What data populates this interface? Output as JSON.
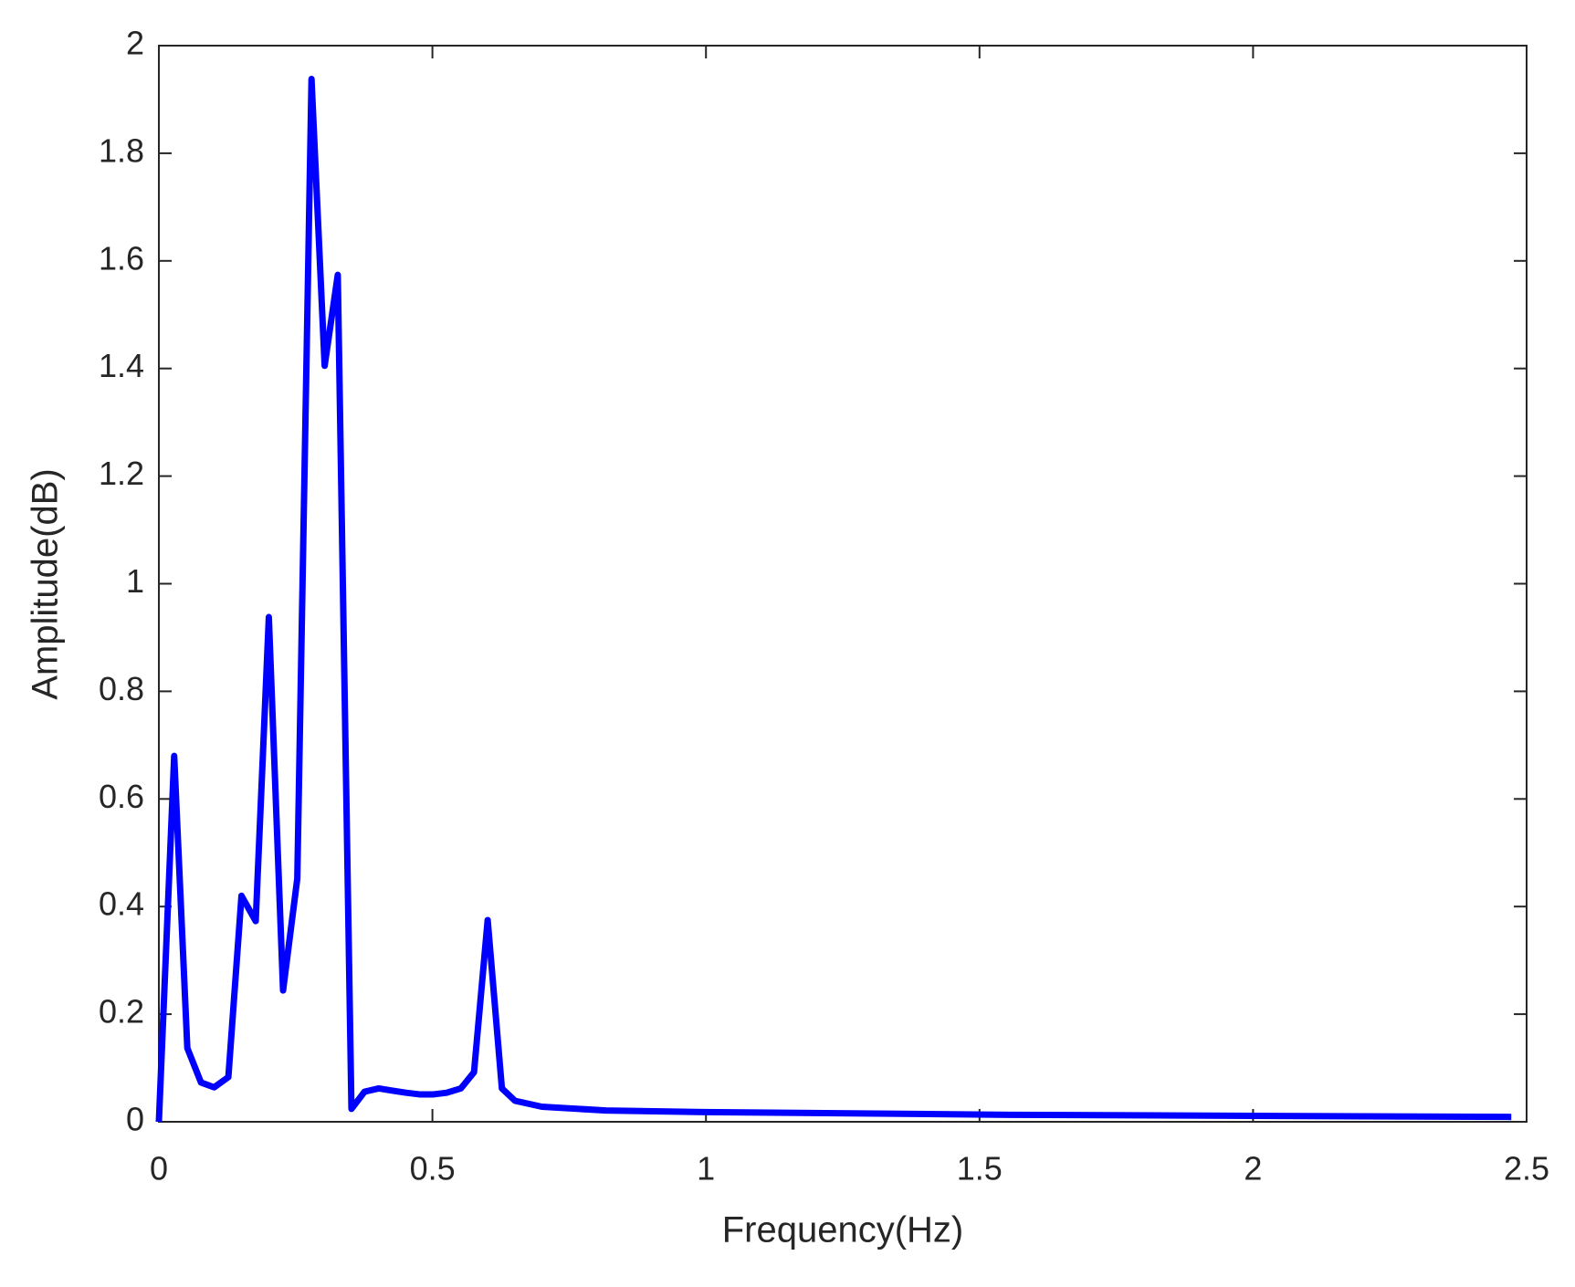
{
  "chart_data": {
    "type": "line",
    "xlabel": "Frequency(Hz)",
    "ylabel": "Amplitude(dB)",
    "x": [
      0,
      0.028,
      0.052,
      0.077,
      0.101,
      0.127,
      0.151,
      0.177,
      0.201,
      0.227,
      0.253,
      0.279,
      0.303,
      0.327,
      0.352,
      0.376,
      0.402,
      0.426,
      0.452,
      0.476,
      0.502,
      0.526,
      0.552,
      0.576,
      0.601,
      0.627,
      0.651,
      0.7,
      0.817,
      1.0,
      1.555,
      2.472
    ],
    "values": [
      0,
      0.68,
      0.137,
      0.073,
      0.064,
      0.083,
      0.42,
      0.373,
      0.938,
      0.244,
      0.452,
      1.938,
      1.405,
      1.574,
      0.024,
      0.056,
      0.062,
      0.058,
      0.054,
      0.051,
      0.051,
      0.054,
      0.062,
      0.092,
      0.375,
      0.062,
      0.039,
      0.028,
      0.021,
      0.018,
      0.013,
      0.009
    ],
    "color": "#0000ff",
    "xlim": [
      0,
      2.5
    ],
    "xticks": [
      0,
      0.5,
      1,
      1.5,
      2,
      2.5
    ],
    "ylim": [
      0,
      2
    ],
    "yticks": [
      0,
      0.2,
      0.4,
      0.6,
      0.8,
      1,
      1.2,
      1.4,
      1.6,
      1.8,
      2
    ],
    "grid": false
  }
}
